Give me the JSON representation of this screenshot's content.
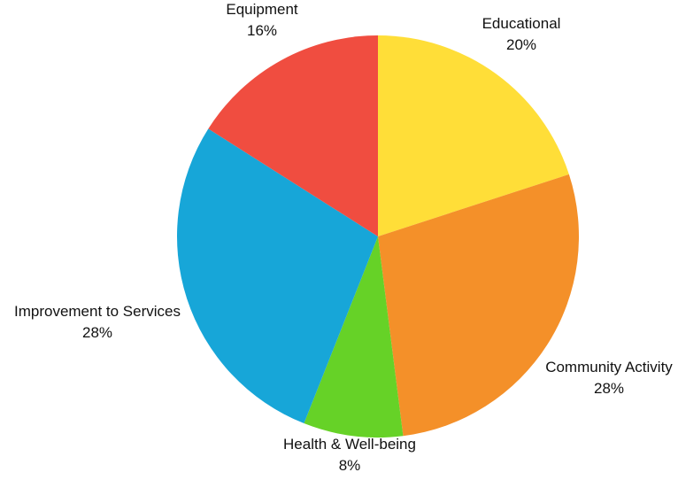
{
  "chart_data": {
    "type": "pie",
    "title": "",
    "start_angle_deg": 0,
    "direction": "clockwise",
    "slices": [
      {
        "label": "Educational",
        "value": 20,
        "value_label": "20%",
        "color": "#FFDE38"
      },
      {
        "label": "Community Activity",
        "value": 28,
        "value_label": "28%",
        "color": "#F49029"
      },
      {
        "label": "Health & Well-being",
        "value": 8,
        "value_label": "8%",
        "color": "#66D227"
      },
      {
        "label": "Improvement to Services",
        "value": 28,
        "value_label": "28%",
        "color": "#17A6D8"
      },
      {
        "label": "Equipment",
        "value": 16,
        "value_label": "16%",
        "color": "#F04D40"
      }
    ],
    "legend": "none",
    "labels_outside": true
  }
}
